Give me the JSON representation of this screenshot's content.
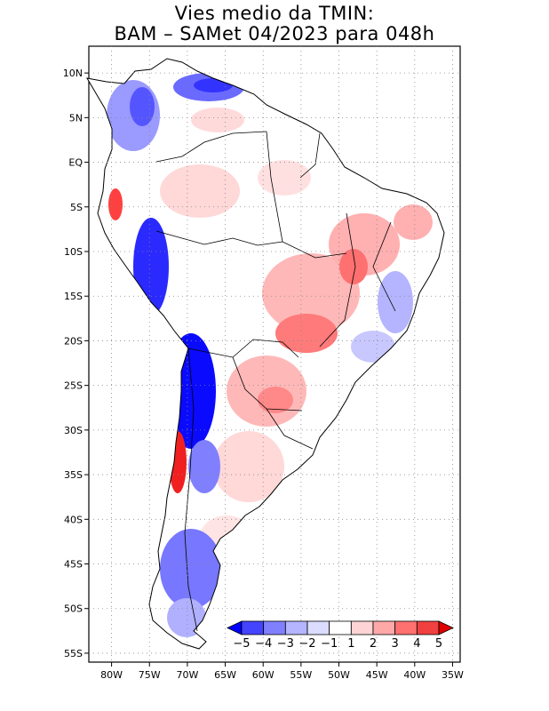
{
  "title": {
    "line1": "Vies medio da TMIN:",
    "line2": "BAM  –  SAMet 04/2023  para 048h"
  },
  "axes": {
    "lat_labels": [
      "10N",
      "5N",
      "EQ",
      "5S",
      "10S",
      "15S",
      "20S",
      "25S",
      "30S",
      "35S",
      "40S",
      "45S",
      "50S",
      "55S"
    ],
    "lat_values": [
      10,
      5,
      0,
      -5,
      -10,
      -15,
      -20,
      -25,
      -30,
      -35,
      -40,
      -45,
      -50,
      -55
    ],
    "lon_labels": [
      "80W",
      "75W",
      "70W",
      "65W",
      "60W",
      "55W",
      "50W",
      "45W",
      "40W",
      "35W"
    ],
    "lon_values": [
      -80,
      -75,
      -70,
      -65,
      -60,
      -55,
      -50,
      -45,
      -40,
      -35
    ],
    "lon_range": [
      -83,
      -34
    ],
    "lat_range": [
      -56,
      13
    ],
    "grid": "dotted"
  },
  "colorbar": {
    "labels": [
      "−5",
      "−4",
      "−3",
      "−2",
      "−1",
      "1",
      "2",
      "3",
      "4",
      "5"
    ],
    "colors": [
      "#0000ff",
      "#4444ff",
      "#8080ff",
      "#b4b4ff",
      "#dcdcff",
      "#ffffff",
      "#ffd4d4",
      "#ffa8a8",
      "#ff7070",
      "#f04040",
      "#e00000"
    ]
  },
  "colors": {
    "frame": "#000000",
    "grid": "#888888",
    "coast": "#000000",
    "land": "#ffffff"
  }
}
